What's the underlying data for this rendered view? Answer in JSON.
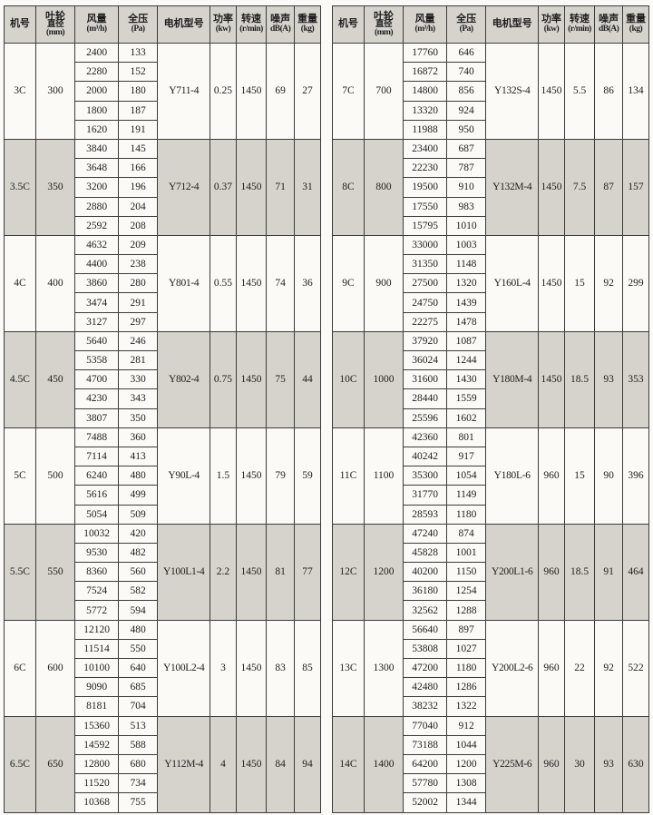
{
  "document": {
    "kind": "fan-specification-table",
    "colors": {
      "shaded_row": "#d6d3cc",
      "header_bg": "#d6d3cc",
      "cell_bg": "#fbfaf7",
      "border": "#3c3c3c",
      "text": "#1e1e1e"
    }
  },
  "columns": [
    {
      "key": "machine",
      "width": "10.0%",
      "l1": "机号"
    },
    {
      "key": "diameter",
      "width": "12.4%",
      "l1": "叶轮",
      "l2": "直径",
      "l3": "(mm)"
    },
    {
      "key": "flow",
      "width": "13.7%",
      "l1": "风量",
      "l2": "(m³/h)"
    },
    {
      "key": "pressure",
      "width": "12.4%",
      "l1": "全压",
      "l2": "(Pa)"
    },
    {
      "key": "motor",
      "width": "16.6%",
      "l1": "电机型号"
    },
    {
      "key": "power",
      "width": "8.2%",
      "l1": "功率",
      "l2": "(kw)"
    },
    {
      "key": "speed",
      "width": "9.6%",
      "l1": "转速",
      "l2": "(r/min)"
    },
    {
      "key": "noise",
      "width": "8.8%",
      "l1": "噪声",
      "l2": "dB(A)"
    },
    {
      "key": "weight",
      "width": "8.3%",
      "l1": "重量",
      "l2": "(kg)"
    }
  ],
  "tables": [
    {
      "rows": [
        {
          "machine": "3C",
          "diameter": "300",
          "flow": [
            "2400",
            "2280",
            "2000",
            "1800",
            "1620"
          ],
          "pressure": [
            "133",
            "152",
            "180",
            "187",
            "191"
          ],
          "motor": "Y711-4",
          "power": "0.25",
          "speed": "1450",
          "noise": "69",
          "weight": "27",
          "shaded": false
        },
        {
          "machine": "3.5C",
          "diameter": "350",
          "flow": [
            "3840",
            "3648",
            "3200",
            "2880",
            "2592"
          ],
          "pressure": [
            "145",
            "166",
            "196",
            "204",
            "208"
          ],
          "motor": "Y712-4",
          "power": "0.37",
          "speed": "1450",
          "noise": "71",
          "weight": "31",
          "shaded": true
        },
        {
          "machine": "4C",
          "diameter": "400",
          "flow": [
            "4632",
            "4400",
            "3860",
            "3474",
            "3127"
          ],
          "pressure": [
            "209",
            "238",
            "280",
            "291",
            "297"
          ],
          "motor": "Y801-4",
          "power": "0.55",
          "speed": "1450",
          "noise": "74",
          "weight": "36",
          "shaded": false
        },
        {
          "machine": "4.5C",
          "diameter": "450",
          "flow": [
            "5640",
            "5358",
            "4700",
            "4230",
            "3807"
          ],
          "pressure": [
            "246",
            "281",
            "330",
            "343",
            "350"
          ],
          "motor": "Y802-4",
          "power": "0.75",
          "speed": "1450",
          "noise": "75",
          "weight": "44",
          "shaded": true
        },
        {
          "machine": "5C",
          "diameter": "500",
          "flow": [
            "7488",
            "7114",
            "6240",
            "5616",
            "5054"
          ],
          "pressure": [
            "360",
            "413",
            "480",
            "499",
            "509"
          ],
          "motor": "Y90L-4",
          "power": "1.5",
          "speed": "1450",
          "noise": "79",
          "weight": "59",
          "shaded": false
        },
        {
          "machine": "5.5C",
          "diameter": "550",
          "flow": [
            "10032",
            "9530",
            "8360",
            "7524",
            "5772"
          ],
          "pressure": [
            "420",
            "482",
            "560",
            "582",
            "594"
          ],
          "motor": "Y100L1-4",
          "power": "2.2",
          "speed": "1450",
          "noise": "81",
          "weight": "77",
          "shaded": true
        },
        {
          "machine": "6C",
          "diameter": "600",
          "flow": [
            "12120",
            "11514",
            "10100",
            "9090",
            "8181"
          ],
          "pressure": [
            "480",
            "550",
            "640",
            "685",
            "704"
          ],
          "motor": "Y100L2-4",
          "power": "3",
          "speed": "1450",
          "noise": "83",
          "weight": "85",
          "shaded": false
        },
        {
          "machine": "6.5C",
          "diameter": "650",
          "flow": [
            "15360",
            "14592",
            "12800",
            "11520",
            "10368"
          ],
          "pressure": [
            "513",
            "588",
            "680",
            "734",
            "755"
          ],
          "motor": "Y112M-4",
          "power": "4",
          "speed": "1450",
          "noise": "84",
          "weight": "94",
          "shaded": true
        }
      ]
    },
    {
      "rows": [
        {
          "machine": "7C",
          "diameter": "700",
          "flow": [
            "17760",
            "16872",
            "14800",
            "13320",
            "11988"
          ],
          "pressure": [
            "646",
            "740",
            "856",
            "924",
            "950"
          ],
          "motor": "Y132S-4",
          "power": "1450",
          "speed": "5.5",
          "noise": "86",
          "weight": "134",
          "shaded": false
        },
        {
          "machine": "8C",
          "diameter": "800",
          "flow": [
            "23400",
            "22230",
            "19500",
            "17550",
            "15795"
          ],
          "pressure": [
            "687",
            "787",
            "910",
            "983",
            "1010"
          ],
          "motor": "Y132M-4",
          "power": "1450",
          "speed": "7.5",
          "noise": "87",
          "weight": "157",
          "shaded": true
        },
        {
          "machine": "9C",
          "diameter": "900",
          "flow": [
            "33000",
            "31350",
            "27500",
            "24750",
            "22275"
          ],
          "pressure": [
            "1003",
            "1148",
            "1320",
            "1439",
            "1478"
          ],
          "motor": "Y160L-4",
          "power": "1450",
          "speed": "15",
          "noise": "92",
          "weight": "299",
          "shaded": false
        },
        {
          "machine": "10C",
          "diameter": "1000",
          "flow": [
            "37920",
            "36024",
            "31600",
            "28440",
            "25596"
          ],
          "pressure": [
            "1087",
            "1244",
            "1430",
            "1559",
            "1602"
          ],
          "motor": "Y180M-4",
          "power": "1450",
          "speed": "18.5",
          "noise": "93",
          "weight": "353",
          "shaded": true
        },
        {
          "machine": "11C",
          "diameter": "1100",
          "flow": [
            "42360",
            "40242",
            "35300",
            "31770",
            "28593"
          ],
          "pressure": [
            "801",
            "917",
            "1054",
            "1149",
            "1180"
          ],
          "motor": "Y180L-6",
          "power": "960",
          "speed": "15",
          "noise": "90",
          "weight": "396",
          "shaded": false
        },
        {
          "machine": "12C",
          "diameter": "1200",
          "flow": [
            "47240",
            "45828",
            "40200",
            "36180",
            "32562"
          ],
          "pressure": [
            "874",
            "1001",
            "1150",
            "1254",
            "1288"
          ],
          "motor": "Y200L1-6",
          "power": "960",
          "speed": "18.5",
          "noise": "91",
          "weight": "464",
          "shaded": true
        },
        {
          "machine": "13C",
          "diameter": "1300",
          "flow": [
            "56640",
            "53808",
            "47200",
            "42480",
            "38232"
          ],
          "pressure": [
            "897",
            "1027",
            "1180",
            "1286",
            "1322"
          ],
          "motor": "Y200L2-6",
          "power": "960",
          "speed": "22",
          "noise": "92",
          "weight": "522",
          "shaded": false
        },
        {
          "machine": "14C",
          "diameter": "1400",
          "flow": [
            "77040",
            "73188",
            "64200",
            "57780",
            "52002"
          ],
          "pressure": [
            "912",
            "1044",
            "1200",
            "1308",
            "1344"
          ],
          "motor": "Y225M-6",
          "power": "960",
          "speed": "30",
          "noise": "93",
          "weight": "630",
          "shaded": true
        }
      ]
    }
  ]
}
